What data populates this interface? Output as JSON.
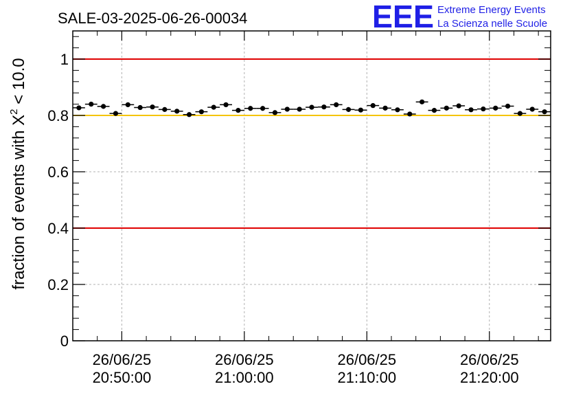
{
  "chart_data": {
    "type": "scatter",
    "title": "SALE-03-2025-06-26-00034",
    "logo": {
      "mark": "EEE",
      "line1": "Extreme Energy Events",
      "line2": "La Scienza nelle Scuole"
    },
    "ylabel_prefix": "fraction of events with ",
    "ylabel_symbol": "X",
    "ylabel_sup": "2",
    "ylabel_suffix": " < 10.0",
    "ylim": [
      0,
      1.1
    ],
    "yticks": [
      0,
      0.2,
      0.4,
      0.6,
      0.8,
      1
    ],
    "ytick_labels": [
      "0",
      "0.2",
      "0.4",
      "0.6",
      "0.8",
      "1"
    ],
    "xlim_minutes": [
      -4,
      35
    ],
    "xticks": [
      {
        "minute": 0,
        "date": "26/06/25",
        "time": "20:50:00"
      },
      {
        "minute": 10,
        "date": "26/06/25",
        "time": "21:00:00"
      },
      {
        "minute": 20,
        "date": "26/06/25",
        "time": "21:10:00"
      },
      {
        "minute": 30,
        "date": "26/06/25",
        "time": "21:20:00"
      }
    ],
    "grid": true,
    "reference_lines": [
      {
        "y": 1.0,
        "color": "#e00000"
      },
      {
        "y": 0.8,
        "color": "#f5c400"
      },
      {
        "y": 0.4,
        "color": "#e00000"
      }
    ],
    "bin_width_minutes": 1,
    "series": [
      {
        "name": "fraction",
        "x_minutes": [
          -3.5,
          -2.5,
          -1.5,
          -0.5,
          0.5,
          1.5,
          2.5,
          3.5,
          4.5,
          5.5,
          6.5,
          7.5,
          8.5,
          9.5,
          10.5,
          11.5,
          12.5,
          13.5,
          14.5,
          15.5,
          16.5,
          17.5,
          18.5,
          19.5,
          20.5,
          21.5,
          22.5,
          23.5,
          24.5,
          25.5,
          26.5,
          27.5,
          28.5,
          29.5,
          30.5,
          31.5,
          32.5,
          33.5,
          34.5
        ],
        "values": [
          0.827,
          0.84,
          0.832,
          0.807,
          0.838,
          0.828,
          0.83,
          0.821,
          0.815,
          0.803,
          0.813,
          0.829,
          0.838,
          0.818,
          0.825,
          0.825,
          0.81,
          0.822,
          0.822,
          0.829,
          0.83,
          0.838,
          0.821,
          0.819,
          0.835,
          0.826,
          0.82,
          0.805,
          0.848,
          0.818,
          0.826,
          0.834,
          0.82,
          0.823,
          0.826,
          0.833,
          0.807,
          0.822,
          0.813
        ],
        "errors": [
          0.004,
          0.004,
          0.004,
          0.004,
          0.004,
          0.004,
          0.004,
          0.004,
          0.004,
          0.004,
          0.004,
          0.004,
          0.004,
          0.004,
          0.004,
          0.004,
          0.004,
          0.004,
          0.004,
          0.004,
          0.004,
          0.004,
          0.004,
          0.004,
          0.004,
          0.004,
          0.004,
          0.004,
          0.004,
          0.004,
          0.004,
          0.004,
          0.004,
          0.004,
          0.004,
          0.004,
          0.004,
          0.004,
          0.004
        ]
      }
    ]
  }
}
